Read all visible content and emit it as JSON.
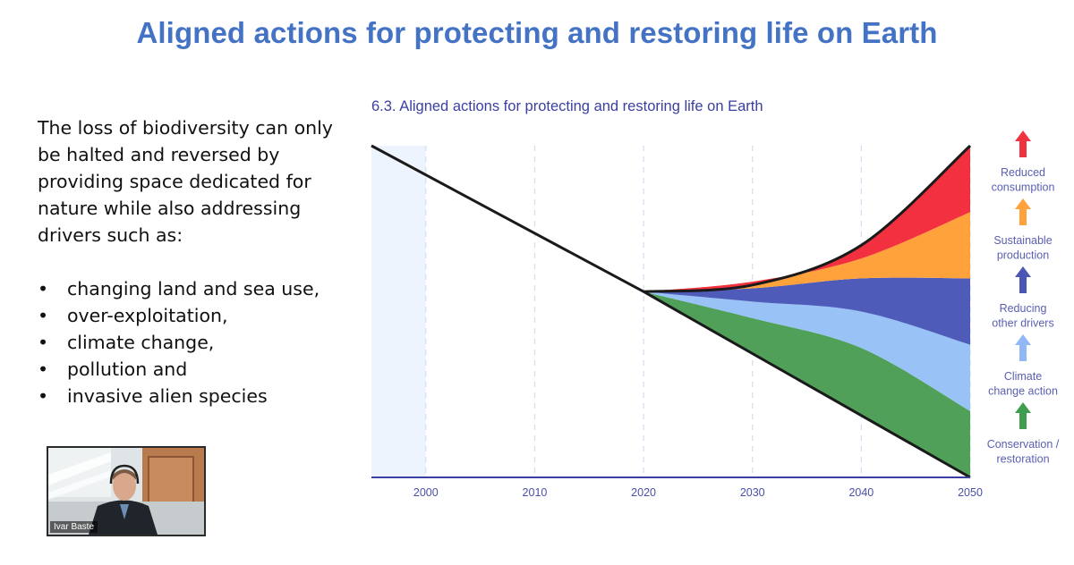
{
  "slide": {
    "title": "Aligned actions for protecting and restoring life on Earth"
  },
  "text_panel": {
    "paragraph_lines": [
      "The loss of biodiversity can only",
      "be halted and reversed by",
      "providing space dedicated for",
      "nature while also addressing",
      "drivers such as:"
    ],
    "bullets": [
      "changing land and sea use,",
      "over-exploitation,",
      "climate change,",
      "pollution and",
      "invasive alien species"
    ]
  },
  "video": {
    "participant_name": "Ivar Baste"
  },
  "chart_data": {
    "type": "area",
    "title": "6.3. Aligned actions for protecting and restoring life on Earth",
    "xlabel": "",
    "ylabel": "",
    "x_ticks": [
      2000,
      2010,
      2020,
      2030,
      2040,
      2050
    ],
    "xlim": [
      1995,
      2050
    ],
    "shaded_period": [
      1995,
      2000
    ],
    "grid": "vertical dashed at ticks",
    "baseline_trend": {
      "x": [
        1995,
        2020,
        2050
      ],
      "y": [
        100,
        56,
        0
      ]
    },
    "series": [
      {
        "name": "Conservation / restoration",
        "color": "#51a05a",
        "arrow_color": "#3f9e4d",
        "x": [
          2020,
          2030,
          2040,
          2050
        ],
        "y": [
          56,
          48,
          39,
          20
        ]
      },
      {
        "name": "Climate change action",
        "color": "#99c2f7",
        "arrow_color": "#8fb8f5",
        "x": [
          2020,
          2030,
          2040,
          2050
        ],
        "y": [
          56,
          53,
          50,
          40
        ]
      },
      {
        "name": "Reducing other drivers",
        "color": "#4e5bb8",
        "arrow_color": "#4a57b5",
        "x": [
          2020,
          2030,
          2040,
          2050
        ],
        "y": [
          56,
          57,
          60,
          60
        ]
      },
      {
        "name": "Sustainable production",
        "color": "#ffa23c",
        "arrow_color": "#ffa23c",
        "x": [
          2020,
          2030,
          2040,
          2050
        ],
        "y": [
          56,
          59,
          66,
          80
        ]
      },
      {
        "name": "Reduced consumption",
        "color": "#f2303f",
        "arrow_color": "#ef3340",
        "x": [
          2020,
          2030,
          2040,
          2050
        ],
        "y": [
          56,
          58,
          70,
          100
        ]
      }
    ],
    "legend": [
      {
        "lines": [
          "Reduced",
          "consumption"
        ],
        "arrow_color": "#ef3340"
      },
      {
        "lines": [
          "Sustainable",
          "production"
        ],
        "arrow_color": "#ffa23c"
      },
      {
        "lines": [
          "Reducing",
          "other drivers"
        ],
        "arrow_color": "#4a57b5"
      },
      {
        "lines": [
          "Climate",
          "change action"
        ],
        "arrow_color": "#8fb8f5"
      },
      {
        "lines": [
          "Conservation /",
          "restoration"
        ],
        "arrow_color": "#3f9e4d"
      }
    ],
    "legend_placement": "right"
  }
}
